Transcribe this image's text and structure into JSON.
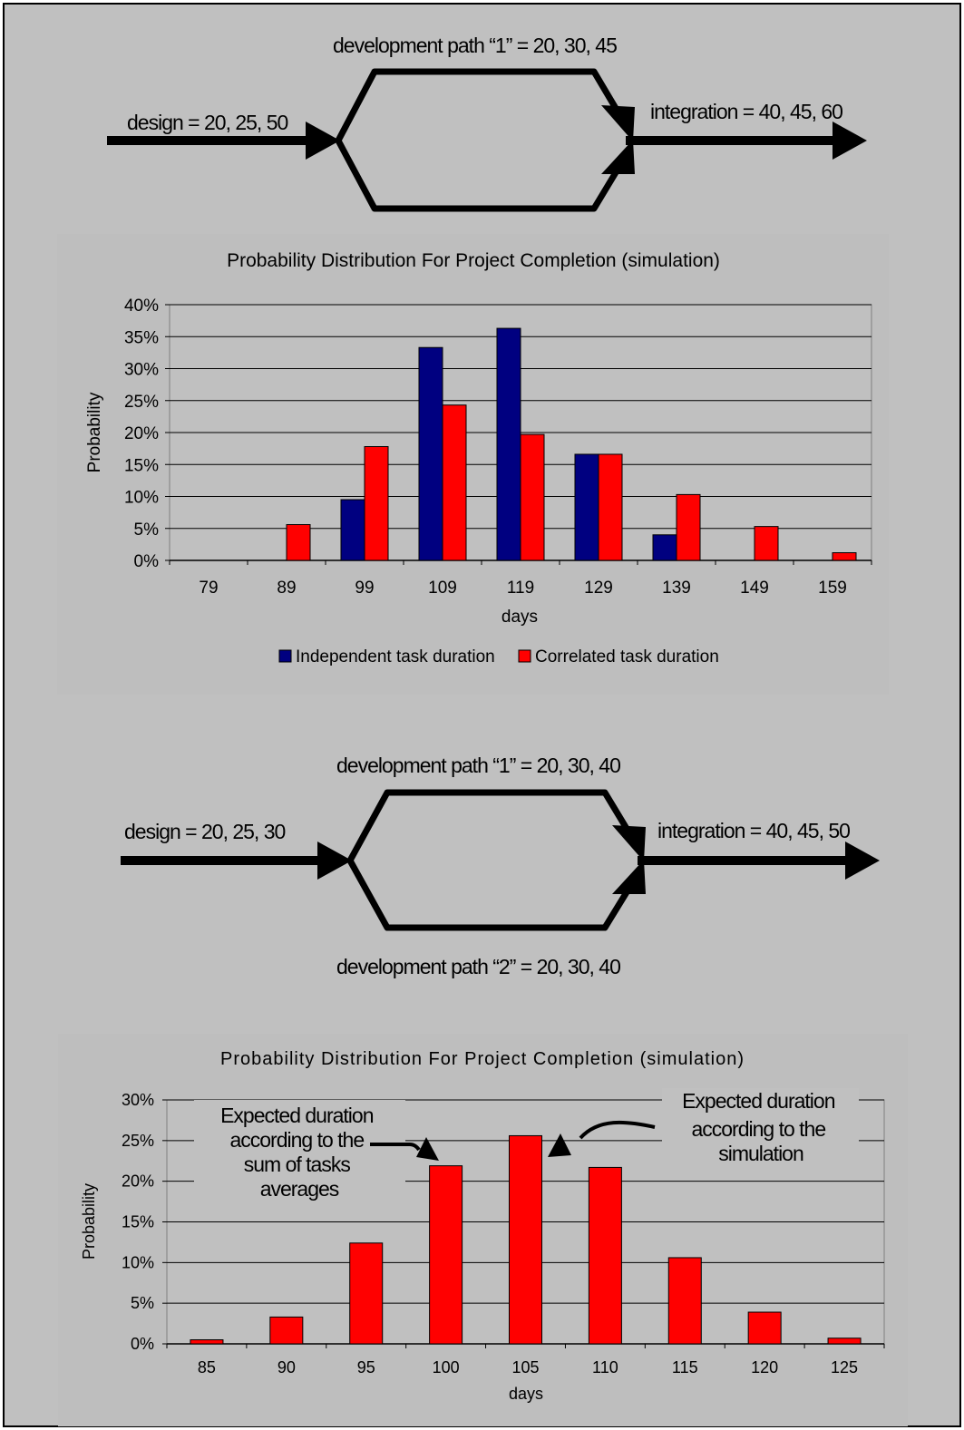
{
  "network1": {
    "design": "design = 20, 25, 50",
    "path1": "development path “1”  = 20, 30, 45",
    "integration": "integration = 40, 45, 60"
  },
  "network2": {
    "design": "design = 20, 25, 30",
    "path1": "development path “1”  = 20, 30, 40",
    "path2": "development path “2”  = 20, 30, 40",
    "integration": "integration = 40, 45, 50"
  },
  "annotations": {
    "sum_of_averages": [
      "Expected duration",
      "according to the",
      "sum of tasks",
      "averages"
    ],
    "simulation": [
      "Expected duration",
      "according to the",
      "simulation"
    ]
  },
  "colors": {
    "page_background": "#c0c0c0",
    "plot_background": "#c0c0c0",
    "chart_area": "#bebebe",
    "independent": "#000080",
    "correlated": "#ff0000"
  },
  "chart_data": [
    {
      "type": "bar",
      "title": "Probability Distribution For Project Completion (simulation)",
      "xlabel": "days",
      "ylabel": "Probability",
      "categories": [
        "79",
        "89",
        "99",
        "109",
        "119",
        "129",
        "139",
        "149",
        "159"
      ],
      "series": [
        {
          "name": "Independent task duration",
          "values": [
            0,
            0,
            9.5,
            33.3,
            36.3,
            16.6,
            4.0,
            0,
            0
          ]
        },
        {
          "name": "Correlated task duration",
          "values": [
            0,
            5.6,
            17.8,
            24.3,
            19.7,
            16.6,
            10.3,
            5.3,
            1.2
          ]
        }
      ],
      "ylim": [
        0,
        40
      ],
      "yticks": [
        "0%",
        "5%",
        "10%",
        "15%",
        "20%",
        "25%",
        "30%",
        "35%",
        "40%"
      ],
      "grid": true,
      "legend": "bottom"
    },
    {
      "type": "bar",
      "title": "Probability Distribution For Project Completion (simulation)",
      "xlabel": "days",
      "ylabel": "Probability",
      "categories": [
        "85",
        "90",
        "95",
        "100",
        "105",
        "110",
        "115",
        "120",
        "125"
      ],
      "series": [
        {
          "values": [
            0.5,
            3.3,
            12.4,
            21.9,
            25.6,
            21.7,
            10.6,
            3.9,
            0.7
          ]
        }
      ],
      "ylim": [
        0,
        30
      ],
      "yticks": [
        "0%",
        "5%",
        "10%",
        "15%",
        "20%",
        "25%",
        "30%"
      ],
      "grid": true,
      "legend": "none"
    }
  ]
}
